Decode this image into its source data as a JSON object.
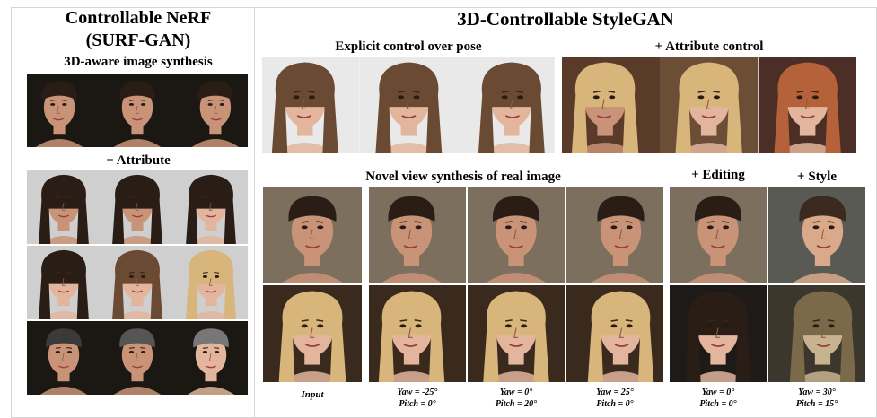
{
  "left": {
    "title_line1": "Controllable NeRF",
    "title_line2": "(SURF-GAN)",
    "subtitle": "3D-aware image synthesis",
    "attribute_label": "+ Attribute"
  },
  "right": {
    "title": "3D-Controllable StyleGAN",
    "pose_label": "Explicit control over pose",
    "attr_label": "+ Attribute control",
    "novel_label": "Novel view synthesis of real image",
    "editing_label": "+ Editing",
    "style_label": "+ Style"
  },
  "captions": {
    "input": "Input",
    "c1_line1": "Yaw =  -25°",
    "c1_line2": "Pitch = 0°",
    "c2_line1": "Yaw = 0°",
    "c2_line2": "Pitch = 20°",
    "c3_line1": "Yaw = 25°",
    "c3_line2": "Pitch = 0°",
    "c4_line1": "Yaw = 0°",
    "c4_line2": "Pitch = 0°",
    "c5_line1": "Yaw = 30°",
    "c5_line2": "Pitch = 15°"
  },
  "colors": {
    "bg_dark": "#1b1712",
    "bg_grey": "#cfcfcf",
    "bg_studio": "#7d6f5e",
    "skin_warm": "#c99377",
    "skin_light": "#e2b59c",
    "hair_dark": "#2a1d16",
    "hair_brown": "#6b4a33",
    "hair_blond": "#d8b57a",
    "hair_red": "#b5623a"
  }
}
